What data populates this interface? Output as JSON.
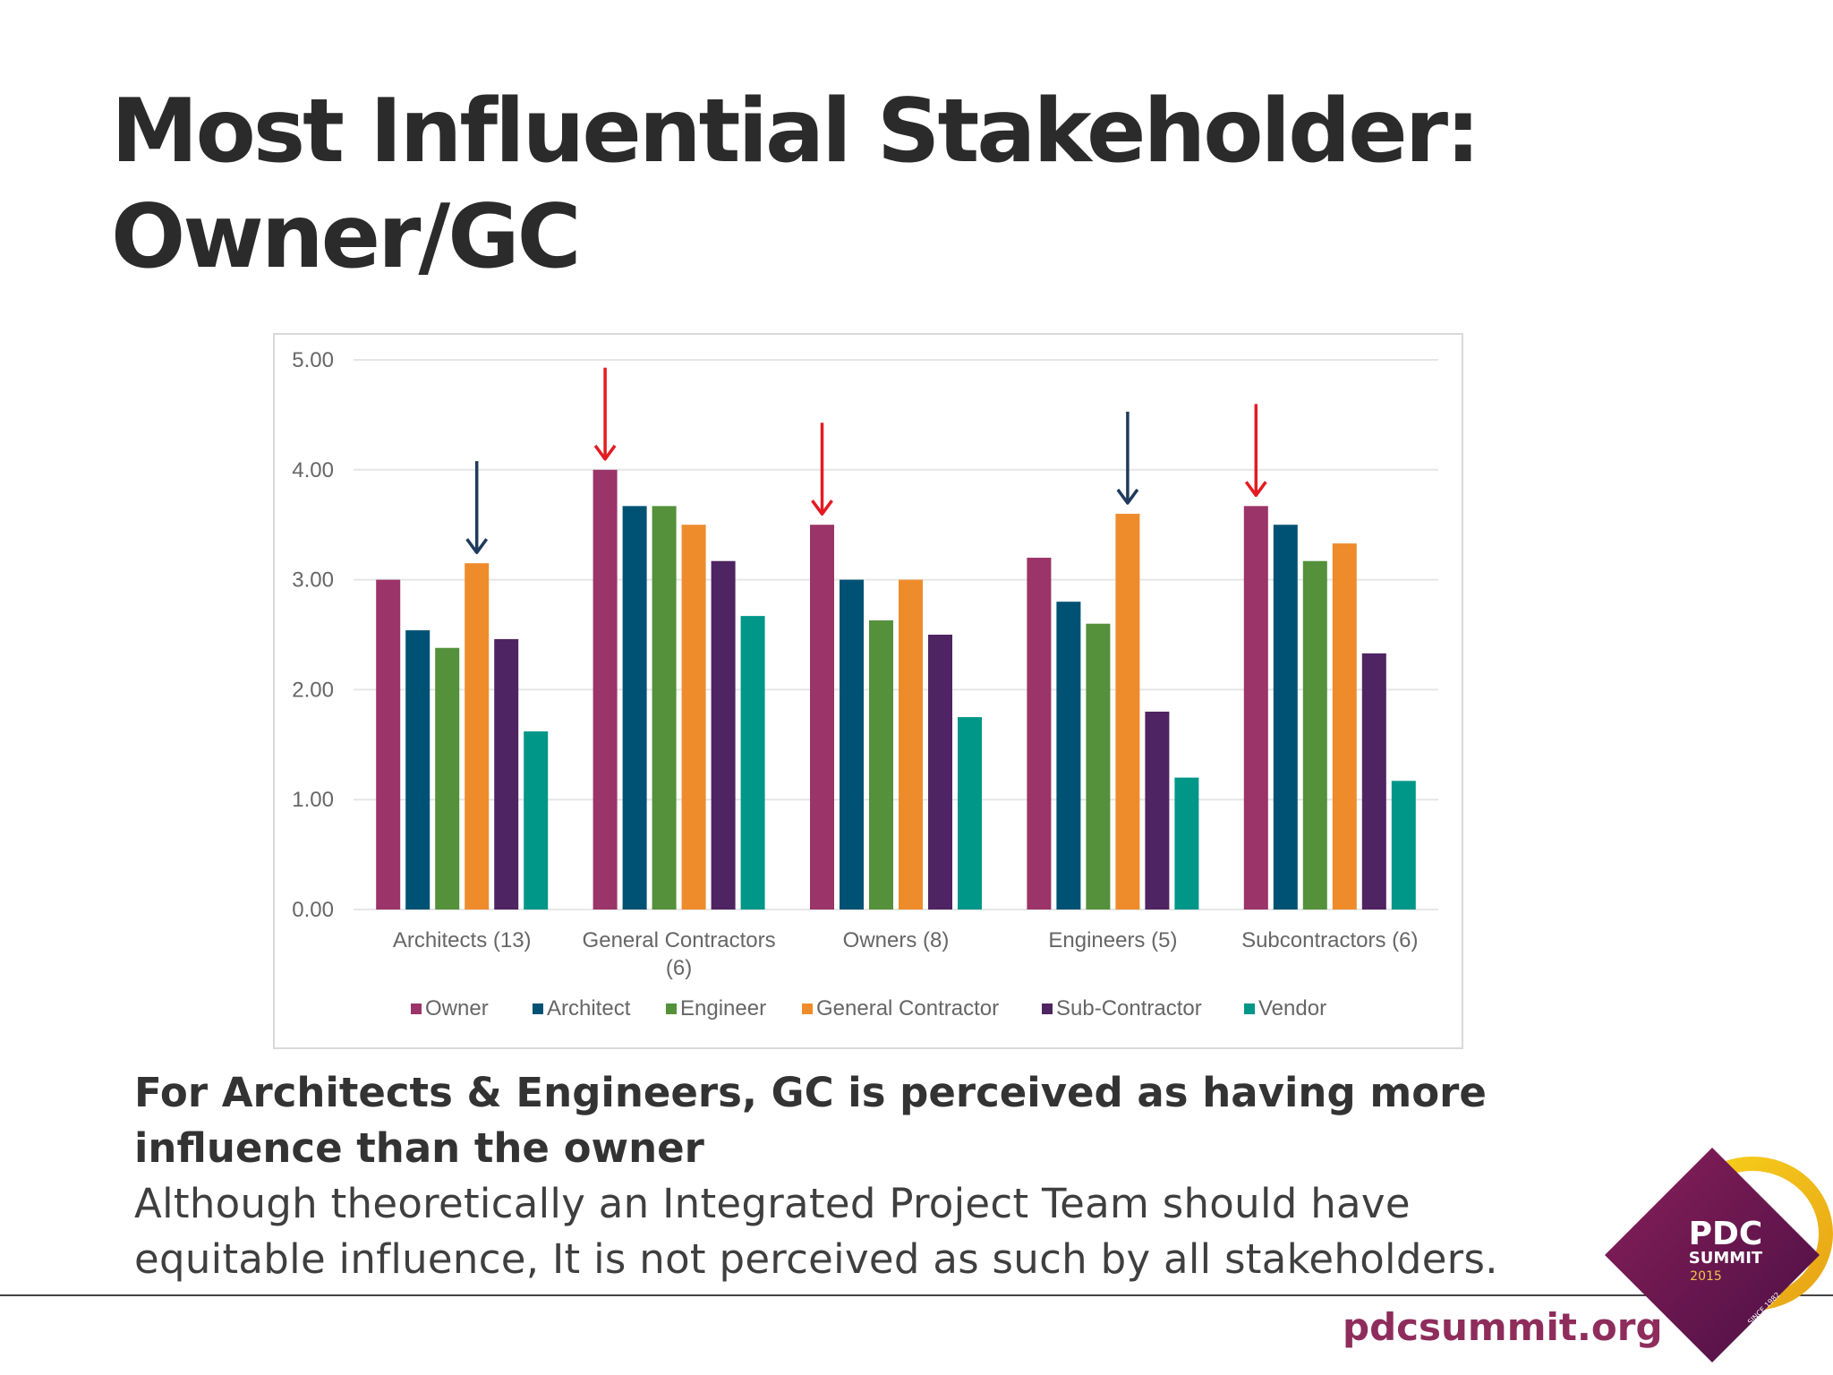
{
  "slide": {
    "title_line1": "Most Influential Stakeholder:",
    "title_line2": "Owner/GC",
    "caption_headline": "For Architects & Engineers, GC is perceived as having more influence than the owner",
    "caption_body": "Although theoretically an Integrated Project Team should have equitable influence, It is not perceived as such by all stakeholders.",
    "site_url": "pdcsummit.org",
    "logo_text": {
      "line1": "PDC",
      "line2": "SUMMIT",
      "year": "2015",
      "since": "SINCE 1982"
    }
  },
  "colors": {
    "Owner": "#9b3468",
    "Architect": "#005274",
    "Engineer": "#54913a",
    "General Contractor": "#ee8c2c",
    "Sub-Contractor": "#4f2462",
    "Vendor": "#009688",
    "arrow_red": "#e31b23",
    "arrow_navy": "#1f3b5c",
    "grid": "#e6e6e6",
    "url": "#8e2d5c"
  },
  "chart_data": {
    "type": "bar",
    "categories": [
      "Architects (13)",
      "General Contractors (6)",
      "Owners (8)",
      "Engineers (5)",
      "Subcontractors (6)"
    ],
    "category_lines": [
      [
        "Architects (13)"
      ],
      [
        "General Contractors",
        "(6)"
      ],
      [
        "Owners (8)"
      ],
      [
        "Engineers (5)"
      ],
      [
        "Subcontractors (6)"
      ]
    ],
    "series": [
      {
        "name": "Owner",
        "values": [
          3.0,
          4.0,
          3.5,
          3.2,
          3.67
        ]
      },
      {
        "name": "Architect",
        "values": [
          2.54,
          3.67,
          3.0,
          2.8,
          3.5
        ]
      },
      {
        "name": "Engineer",
        "values": [
          2.38,
          3.67,
          2.63,
          2.6,
          3.17
        ]
      },
      {
        "name": "General Contractor",
        "values": [
          3.15,
          3.5,
          3.0,
          3.6,
          3.33
        ]
      },
      {
        "name": "Sub-Contractor",
        "values": [
          2.46,
          3.17,
          2.5,
          1.8,
          2.33
        ]
      },
      {
        "name": "Vendor",
        "values": [
          1.62,
          2.67,
          1.75,
          1.2,
          1.17
        ]
      }
    ],
    "ylim": [
      0,
      5
    ],
    "yticks": [
      "0.00",
      "1.00",
      "2.00",
      "3.00",
      "4.00",
      "5.00"
    ],
    "grid": true,
    "legend_position": "bottom",
    "annotations": [
      {
        "category": "Architects (13)",
        "series": "General Contractor",
        "mark": "arrow",
        "color": "navy"
      },
      {
        "category": "General Contractors (6)",
        "series": "Owner",
        "mark": "arrow",
        "color": "red"
      },
      {
        "category": "Owners (8)",
        "series": "Owner",
        "mark": "arrow",
        "color": "red"
      },
      {
        "category": "Engineers (5)",
        "series": "General Contractor",
        "mark": "arrow",
        "color": "navy"
      },
      {
        "category": "Subcontractors (6)",
        "series": "Owner",
        "mark": "arrow",
        "color": "red"
      }
    ]
  }
}
